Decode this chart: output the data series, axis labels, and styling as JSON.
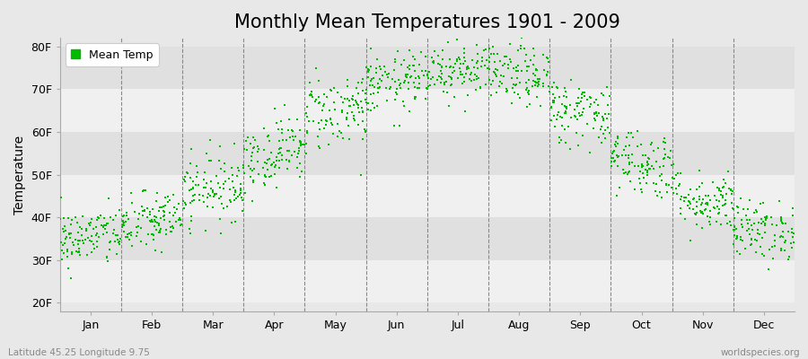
{
  "title": "Monthly Mean Temperatures 1901 - 2009",
  "ylabel": "Temperature",
  "xlabel_bottom_left": "Latitude 45.25 Longitude 9.75",
  "xlabel_bottom_right": "worldspecies.org",
  "legend_label": "Mean Temp",
  "dot_color": "#00bb00",
  "background_color": "#e8e8e8",
  "plot_bg_color": "#e8e8e8",
  "ytick_labels": [
    "20F",
    "30F",
    "40F",
    "50F",
    "60F",
    "70F",
    "80F"
  ],
  "ytick_values": [
    20,
    30,
    40,
    50,
    60,
    70,
    80
  ],
  "ylim": [
    18,
    82
  ],
  "month_names": [
    "Jan",
    "Feb",
    "Mar",
    "Apr",
    "May",
    "Jun",
    "Jul",
    "Aug",
    "Sep",
    "Oct",
    "Nov",
    "Dec"
  ],
  "month_centers": [
    0.5,
    1.5,
    2.5,
    3.5,
    4.5,
    5.5,
    6.5,
    7.5,
    8.5,
    9.5,
    10.5,
    11.5
  ],
  "xlim": [
    0,
    12
  ],
  "num_years": 109,
  "seed": 42,
  "monthly_mean_F": [
    35,
    38,
    46,
    54,
    64,
    71,
    75,
    74,
    66,
    54,
    45,
    37
  ],
  "monthly_std_F": [
    3.5,
    3.5,
    4.0,
    4.0,
    4.5,
    3.5,
    3.5,
    3.5,
    4.0,
    4.0,
    3.5,
    3.5
  ],
  "title_fontsize": 15,
  "axis_label_fontsize": 10,
  "tick_fontsize": 9,
  "legend_fontsize": 9,
  "dot_size": 3,
  "dot_marker": "s",
  "stripe_colors": [
    "#f0f0f0",
    "#e0e0e0"
  ],
  "stripe_yticks": [
    20,
    30,
    40,
    50,
    60,
    70,
    80
  ]
}
